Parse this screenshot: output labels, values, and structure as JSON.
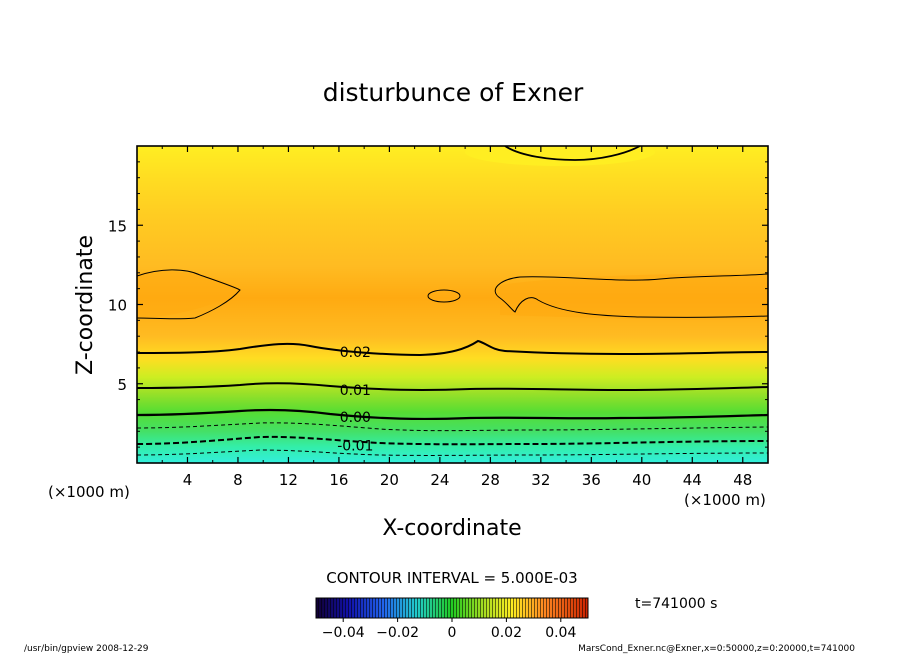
{
  "chart_data": {
    "type": "heatmap",
    "title": "disturbunce of Exner",
    "xlabel": "X-coordinate",
    "ylabel": "Z-coordinate",
    "x_unit_label": "(×1000 m)",
    "y_unit_label": "(×1000 m)",
    "xlim": [
      0,
      50
    ],
    "ylim": [
      0,
      20
    ],
    "x_ticks": [
      "4",
      "8",
      "12",
      "16",
      "20",
      "24",
      "28",
      "32",
      "36",
      "40",
      "44",
      "48"
    ],
    "y_ticks": [
      "5",
      "10",
      "15"
    ],
    "contour_interval_text": "CONTOUR INTERVAL = 5.000E-03",
    "contour_labels": [
      {
        "text": "0.02",
        "x": 17.3,
        "z": 7.0,
        "level": 0.02
      },
      {
        "text": "0.01",
        "x": 17.3,
        "z": 4.6,
        "level": 0.01
      },
      {
        "text": "0.00",
        "x": 17.3,
        "z": 2.9,
        "level": 0.0
      },
      {
        "text": "-0.01",
        "x": 17.3,
        "z": 1.1,
        "level": -0.01
      }
    ],
    "colorbar": {
      "min": -0.05,
      "max": 0.05,
      "tick_values": [
        -0.04,
        -0.02,
        0,
        0.02,
        0.04
      ],
      "tick_labels": [
        "−0.04",
        "−0.02",
        "0",
        "0.02",
        "0.04"
      ]
    },
    "time_label": "t=741000 s",
    "footer_left": "/usr/bin/gpview  2008-12-29",
    "footer_right": "MarsCond_Exner.nc@Exner,x=0:50000,z=0:20000,t=741000"
  },
  "colors": {
    "cyan": "#33eedd",
    "green": "#44dd22",
    "yellow": "#ffee22",
    "orange": "#ffaa11"
  }
}
